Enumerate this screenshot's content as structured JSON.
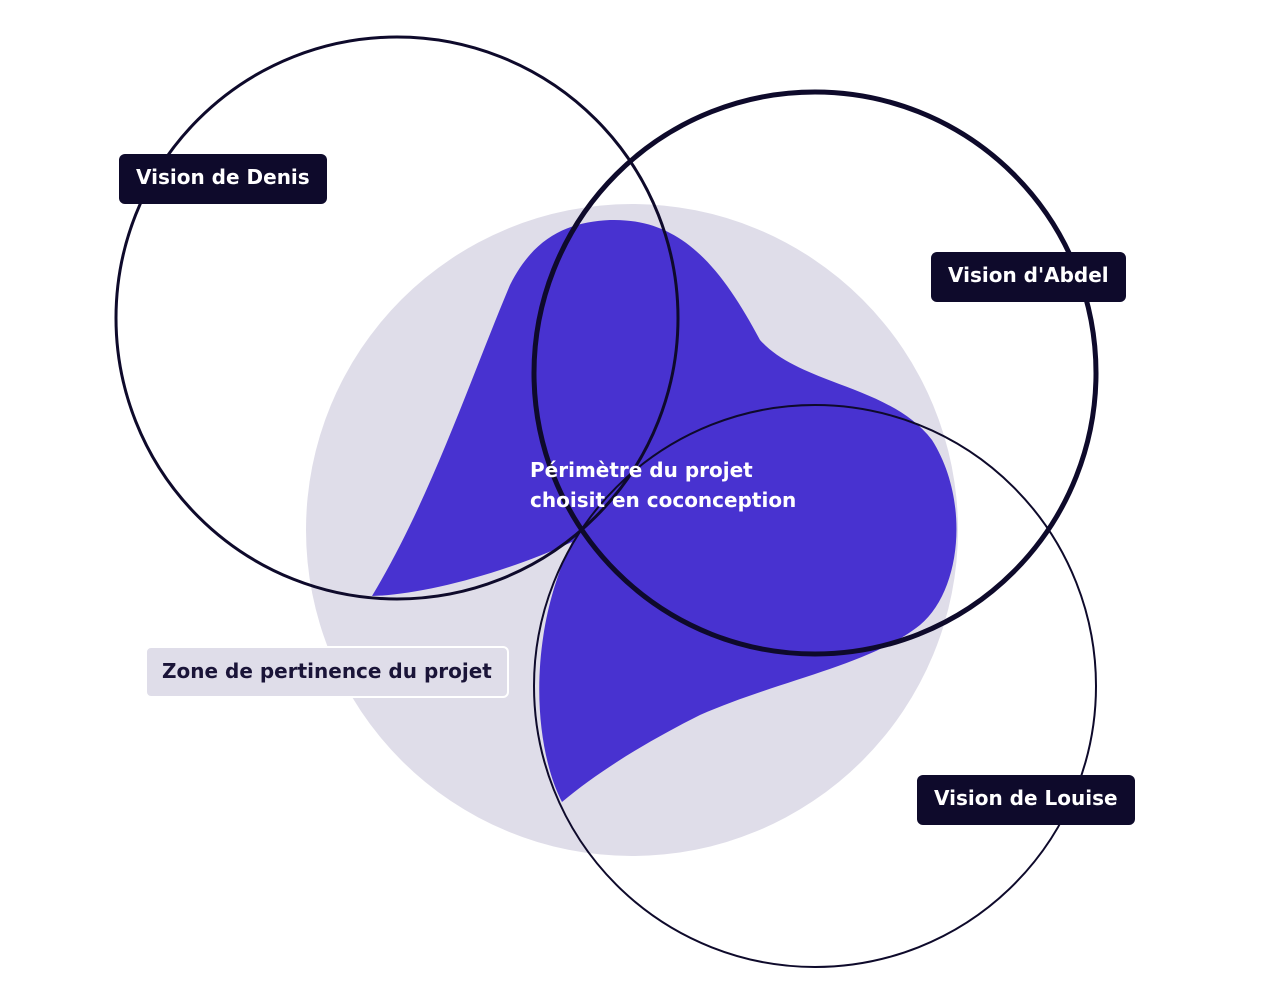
{
  "colors": {
    "zone_fill": "#dfdde9",
    "blob_fill": "#4832d0",
    "circle_stroke": "#0e0a2b",
    "label_bg": "#0e0a2b",
    "label_text": "#ffffff"
  },
  "labels": {
    "denis": "Vision de Denis",
    "abdel": "Vision d'Abdel",
    "louise": "Vision de Louise",
    "zone": "Zone de pertinence du projet",
    "perimeter_line1": "Périmètre du projet",
    "perimeter_line2": "choisit en coconception"
  }
}
